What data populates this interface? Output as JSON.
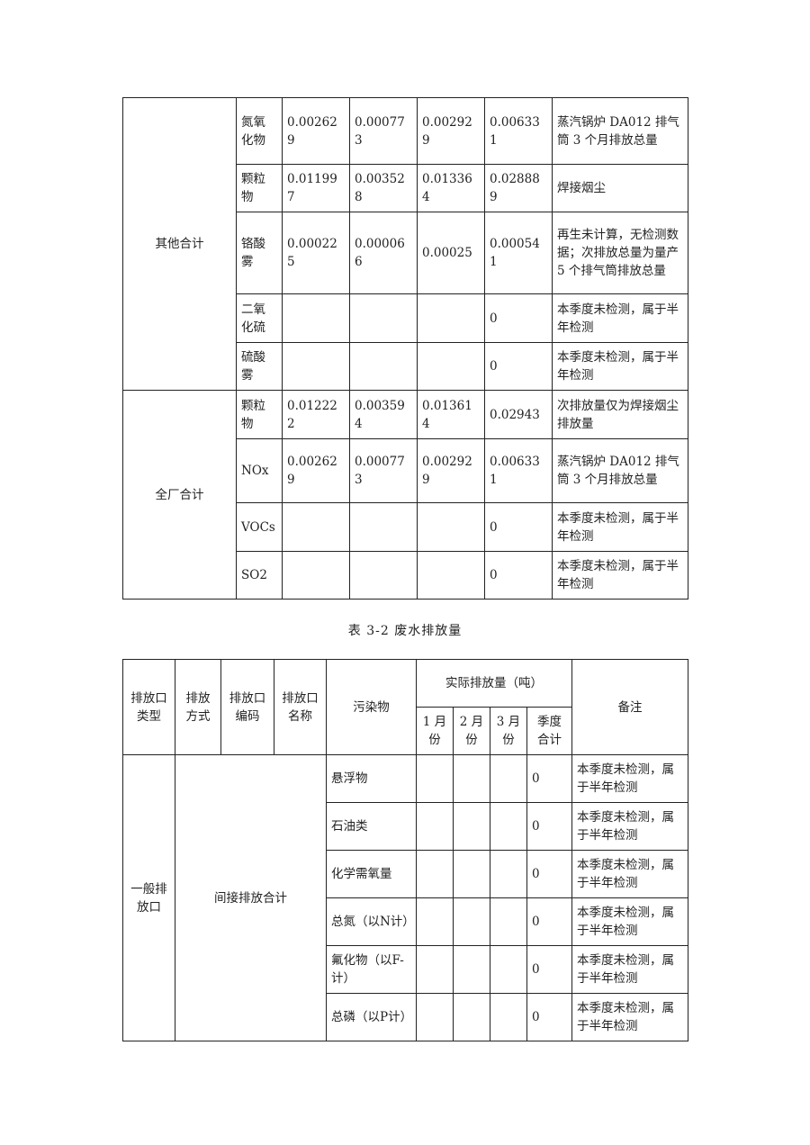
{
  "table1": {
    "groups": [
      {
        "name": "其他合计",
        "rows": [
          {
            "pollutant": "氮氧化物",
            "m1": "0.002629",
            "m2": "0.000773",
            "m3": "0.002929",
            "total": "0.006331",
            "note": "蒸汽锅炉 DA012 排气筒 3 个月排放总量"
          },
          {
            "pollutant": "颗粒物",
            "m1": "0.011997",
            "m2": "0.003528",
            "m3": "0.013364",
            "total": "0.028889",
            "note": "焊接烟尘"
          },
          {
            "pollutant": "铬酸雾",
            "m1": "0.000225",
            "m2": "0.000066",
            "m3": "0.00025",
            "total": "0.000541",
            "note": "再生未计算，无检测数据；次排放总量为量产 5 个排气筒排放总量"
          },
          {
            "pollutant": "二氧化硫",
            "m1": "",
            "m2": "",
            "m3": "",
            "total": "0",
            "note": "本季度未检测，属于半年检测"
          },
          {
            "pollutant": "硫酸雾",
            "m1": "",
            "m2": "",
            "m3": "",
            "total": "0",
            "note": "本季度未检测，属于半年检测"
          }
        ]
      },
      {
        "name": "全厂合计",
        "rows": [
          {
            "pollutant": "颗粒物",
            "m1": "0.012222",
            "m2": "0.003594",
            "m3": "0.013614",
            "total": "0.02943",
            "note": "次排放量仅为焊接烟尘排放量"
          },
          {
            "pollutant": "NOx",
            "m1": "0.002629",
            "m2": "0.000773",
            "m3": "0.002929",
            "total": "0.006331",
            "note": "蒸汽锅炉 DA012 排气筒 3 个月排放总量"
          },
          {
            "pollutant": "VOCs",
            "m1": "",
            "m2": "",
            "m3": "",
            "total": "0",
            "note": "本季度未检测，属于半年检测"
          },
          {
            "pollutant": "SO2",
            "m1": "",
            "m2": "",
            "m3": "",
            "total": "0",
            "note": "本季度未检测，属于半年检测"
          }
        ]
      }
    ]
  },
  "caption": "表 3-2 废水排放量",
  "table2": {
    "headers": {
      "outlet_type": "排放口类型",
      "method": "排放方式",
      "code": "排放口编码",
      "name": "排放口名称",
      "pollutant": "污染物",
      "actual": "实际排放量（吨）",
      "m1": "1 月份",
      "m2": "2 月份",
      "m3": "3 月份",
      "quarter": "季度合计",
      "note": "备注"
    },
    "outlet_type": "一般排放口",
    "method": "间接排放合计",
    "rows": [
      {
        "pollutant": "悬浮物",
        "total": "0",
        "note": "本季度未检测，属于半年检测"
      },
      {
        "pollutant": "石油类",
        "total": "0",
        "note": "本季度未检测，属于半年检测"
      },
      {
        "pollutant": "化学需氧量",
        "total": "0",
        "note": "本季度未检测，属于半年检测"
      },
      {
        "pollutant": "总氮（以N计）",
        "total": "0",
        "note": "本季度未检测，属于半年检测"
      },
      {
        "pollutant": "氟化物（以F-计）",
        "total": "0",
        "note": "本季度未检测，属于半年检测"
      },
      {
        "pollutant": "总磷（以P计）",
        "total": "0",
        "note": "本季度未检测，属于半年检测"
      }
    ]
  }
}
